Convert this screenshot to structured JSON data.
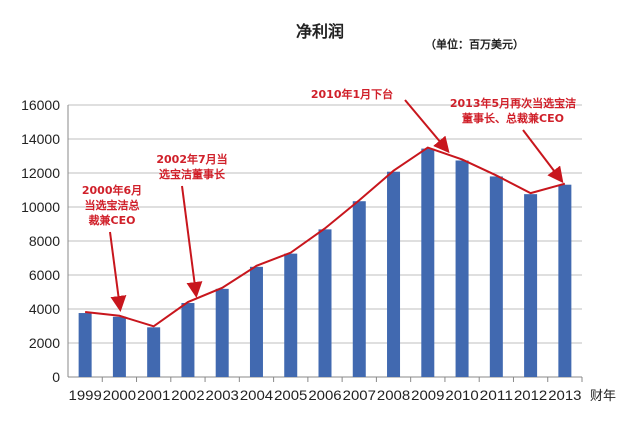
{
  "chart_data": {
    "type": "bar",
    "title": "净利润",
    "unit_note": "（单位：百万美元）",
    "xlabel": "财年",
    "ylabel": "",
    "categories": [
      "1999",
      "2000",
      "2001",
      "2002",
      "2003",
      "2004",
      "2005",
      "2006",
      "2007",
      "2008",
      "2009",
      "2010",
      "2011",
      "2012",
      "2013"
    ],
    "values": [
      3763,
      3542,
      2922,
      4352,
      5186,
      6481,
      7257,
      8684,
      10340,
      12075,
      13436,
      12736,
      11797,
      10756,
      11312
    ],
    "ylim": [
      0,
      16000
    ],
    "yticks": [
      0,
      2000,
      4000,
      6000,
      8000,
      10000,
      12000,
      14000,
      16000
    ],
    "grid": true,
    "overlay_line": true,
    "colors": {
      "bar": "#4169b0",
      "line": "#c8161d",
      "annotation": "#d0202a",
      "grid": "#bfbfbf"
    },
    "annotations": [
      {
        "lines": [
          "2000年6月",
          "当选宝洁总",
          "裁兼CEO"
        ],
        "target": "2000"
      },
      {
        "lines": [
          "2002年7月当",
          "选宝洁董事长"
        ],
        "target": "2002"
      },
      {
        "lines": [
          "2010年1月下台"
        ],
        "target": "2009"
      },
      {
        "lines": [
          "2013年5月再次当选宝洁",
          "董事长、总裁兼CEO"
        ],
        "target": "2013"
      }
    ]
  }
}
